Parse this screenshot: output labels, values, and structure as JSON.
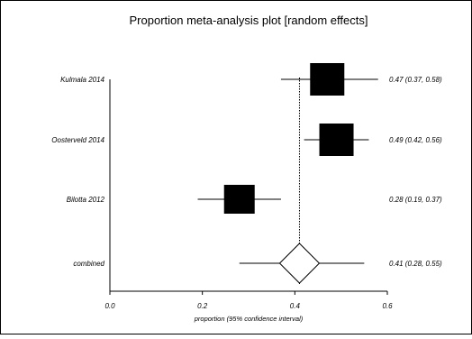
{
  "chart_data": {
    "type": "forest",
    "title": "Proportion meta-analysis plot [random effects]",
    "xlabel": "proportion (95% confidence interval)",
    "xlim": [
      0.0,
      0.6
    ],
    "xticks": [
      "0.0",
      "0.2",
      "0.4",
      "0.6"
    ],
    "tick_values": [
      0.0,
      0.2,
      0.4,
      0.6
    ],
    "studies": [
      {
        "name": "Kulmala 2014",
        "estimate": 0.47,
        "lower": 0.37,
        "upper": 0.58,
        "ci_text": "0.47 (0.37, 0.58)"
      },
      {
        "name": "Oosterveld 2014",
        "estimate": 0.49,
        "lower": 0.42,
        "upper": 0.56,
        "ci_text": "0.49 (0.42, 0.56)"
      },
      {
        "name": "Bilotta 2012",
        "estimate": 0.28,
        "lower": 0.19,
        "upper": 0.37,
        "ci_text": "0.28 (0.19, 0.37)"
      }
    ],
    "combined": {
      "name": "combined",
      "estimate": 0.41,
      "lower": 0.28,
      "upper": 0.55,
      "pred_lower": 0.28,
      "pred_upper": 0.55,
      "ci_text": "0.41 (0.28, 0.55)"
    }
  }
}
